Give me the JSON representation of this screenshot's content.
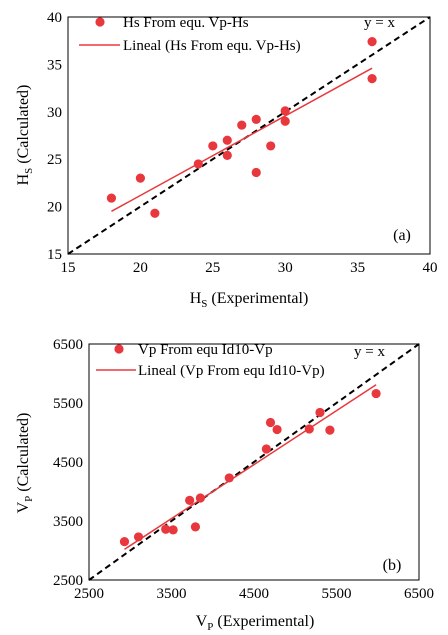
{
  "chart_data": [
    {
      "type": "scatter",
      "panel_label": "(a)",
      "xlabel": "H",
      "xlabel_sub": "S",
      "xlabel_rest": " (Experimental)",
      "ylabel": "H",
      "ylabel_sub": "S",
      "ylabel_rest": " (Calculated)",
      "xlim": [
        15,
        40
      ],
      "ylim": [
        15,
        40
      ],
      "xticks": [
        "15",
        "20",
        "25",
        "30",
        "35",
        "40"
      ],
      "yticks": [
        "15",
        "20",
        "25",
        "30",
        "35",
        "40"
      ],
      "legend_placement": "top-left",
      "identity_label": "y = x",
      "series": [
        {
          "name": "Hs From equ. Vp-Hs",
          "color": "#e8383d",
          "x": [
            18,
            20,
            21,
            24,
            25,
            26,
            26,
            27,
            28,
            28,
            29,
            30,
            30,
            36,
            36
          ],
          "y": [
            20.9,
            23.0,
            19.3,
            24.5,
            26.4,
            27.0,
            25.4,
            28.6,
            29.2,
            23.6,
            26.4,
            29.0,
            30.1,
            37.4,
            33.5
          ]
        }
      ],
      "fit": {
        "name": "Lineal (Hs From equ. Vp-Hs)",
        "color": "#e8383d",
        "x": [
          18,
          36
        ],
        "y": [
          19.5,
          34.6
        ]
      }
    },
    {
      "type": "scatter",
      "panel_label": "(b)",
      "xlabel": "V",
      "xlabel_sub": "P",
      "xlabel_rest": " (Experimental)",
      "ylabel": "V",
      "ylabel_sub": "P",
      "ylabel_rest": " (Calculated)",
      "xlim": [
        2500,
        6500
      ],
      "ylim": [
        2500,
        6500
      ],
      "xticks": [
        "2500",
        "3500",
        "4500",
        "5500",
        "6500"
      ],
      "yticks": [
        "2500",
        "3500",
        "4500",
        "5500",
        "6500"
      ],
      "legend_placement": "top-left",
      "identity_label": "y = x",
      "series": [
        {
          "name": "Vp From equ Id10-Vp",
          "color": "#e8383d",
          "x": [
            2930,
            3100,
            3430,
            3520,
            3720,
            3790,
            3850,
            4200,
            4650,
            4700,
            4780,
            5170,
            5300,
            5420,
            5980
          ],
          "y": [
            3150,
            3230,
            3360,
            3350,
            3850,
            3400,
            3890,
            4230,
            4720,
            5170,
            5050,
            5060,
            5340,
            5040,
            5660
          ]
        }
      ],
      "fit": {
        "name": "Lineal (Vp From equ Id10-Vp)",
        "color": "#e8383d",
        "x": [
          2930,
          5980
        ],
        "y": [
          3020,
          5810
        ]
      }
    }
  ]
}
